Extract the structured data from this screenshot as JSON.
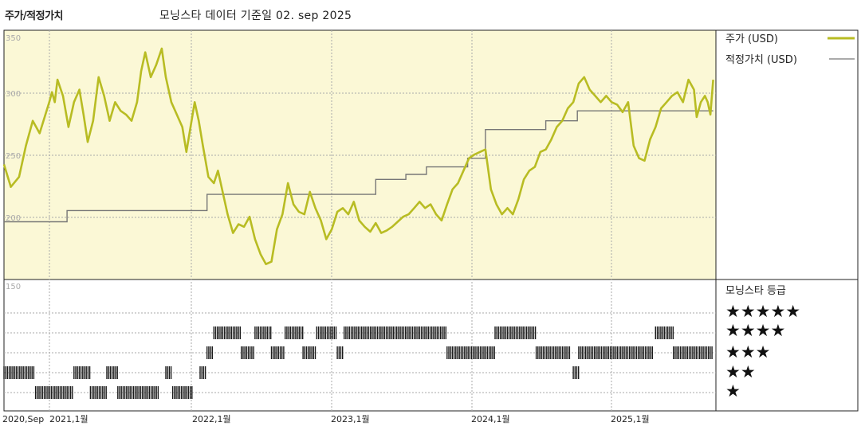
{
  "header": {
    "title": "주가/적정가치",
    "subtitle": "모닝스타 데이터 기준일 02. sep 2025"
  },
  "colors": {
    "price_line": "#b8bc23",
    "fair_value_line": "#777777",
    "plot_bg": "#fbf8d6",
    "bar": "#1a1a1a"
  },
  "legend": {
    "price_label": "주가 (USD)",
    "fair_value_label": "적정가치 (USD)",
    "rating_title": "모닝스타 등급"
  },
  "chart_data": {
    "type": "line",
    "x_labels": [
      "2020,Sep",
      "2021,1월",
      "2022,1월",
      "2023,1월",
      "2024,1월",
      "2025,1월"
    ],
    "y_ticks": [
      "350",
      "300",
      "250",
      "200",
      "150"
    ],
    "ylim": [
      150,
      350
    ],
    "price_series_name": "주가 (USD)",
    "price": [
      [
        2020.67,
        250
      ],
      [
        2020.72,
        232
      ],
      [
        2020.78,
        240
      ],
      [
        2020.83,
        265
      ],
      [
        2020.88,
        285
      ],
      [
        2020.93,
        275
      ],
      [
        2021.0,
        300
      ],
      [
        2021.02,
        308
      ],
      [
        2021.04,
        300
      ],
      [
        2021.06,
        318
      ],
      [
        2021.1,
        305
      ],
      [
        2021.14,
        280
      ],
      [
        2021.18,
        300
      ],
      [
        2021.22,
        310
      ],
      [
        2021.25,
        290
      ],
      [
        2021.28,
        268
      ],
      [
        2021.32,
        285
      ],
      [
        2021.36,
        320
      ],
      [
        2021.4,
        305
      ],
      [
        2021.44,
        285
      ],
      [
        2021.48,
        300
      ],
      [
        2021.52,
        293
      ],
      [
        2021.56,
        290
      ],
      [
        2021.6,
        285
      ],
      [
        2021.64,
        300
      ],
      [
        2021.67,
        325
      ],
      [
        2021.7,
        340
      ],
      [
        2021.74,
        320
      ],
      [
        2021.78,
        330
      ],
      [
        2021.82,
        343
      ],
      [
        2021.85,
        320
      ],
      [
        2021.89,
        300
      ],
      [
        2021.93,
        290
      ],
      [
        2021.97,
        280
      ],
      [
        2022.0,
        260
      ],
      [
        2022.03,
        280
      ],
      [
        2022.06,
        300
      ],
      [
        2022.09,
        285
      ],
      [
        2022.12,
        265
      ],
      [
        2022.16,
        240
      ],
      [
        2022.2,
        235
      ],
      [
        2022.23,
        245
      ],
      [
        2022.27,
        225
      ],
      [
        2022.3,
        210
      ],
      [
        2022.34,
        195
      ],
      [
        2022.38,
        202
      ],
      [
        2022.42,
        200
      ],
      [
        2022.46,
        208
      ],
      [
        2022.5,
        190
      ],
      [
        2022.54,
        178
      ],
      [
        2022.58,
        170
      ],
      [
        2022.62,
        172
      ],
      [
        2022.66,
        198
      ],
      [
        2022.7,
        210
      ],
      [
        2022.74,
        235
      ],
      [
        2022.78,
        218
      ],
      [
        2022.82,
        212
      ],
      [
        2022.86,
        210
      ],
      [
        2022.9,
        228
      ],
      [
        2022.94,
        215
      ],
      [
        2022.98,
        205
      ],
      [
        2023.02,
        190
      ],
      [
        2023.06,
        198
      ],
      [
        2023.1,
        212
      ],
      [
        2023.14,
        215
      ],
      [
        2023.18,
        210
      ],
      [
        2023.22,
        220
      ],
      [
        2023.26,
        205
      ],
      [
        2023.3,
        200
      ],
      [
        2023.34,
        196
      ],
      [
        2023.38,
        203
      ],
      [
        2023.42,
        195
      ],
      [
        2023.46,
        197
      ],
      [
        2023.5,
        200
      ],
      [
        2023.54,
        204
      ],
      [
        2023.58,
        208
      ],
      [
        2023.62,
        210
      ],
      [
        2023.66,
        215
      ],
      [
        2023.7,
        220
      ],
      [
        2023.74,
        215
      ],
      [
        2023.78,
        218
      ],
      [
        2023.82,
        210
      ],
      [
        2023.86,
        205
      ],
      [
        2023.9,
        218
      ],
      [
        2023.94,
        230
      ],
      [
        2023.98,
        235
      ],
      [
        2024.02,
        245
      ],
      [
        2024.06,
        255
      ],
      [
        2024.1,
        258
      ],
      [
        2024.14,
        260
      ],
      [
        2024.18,
        262
      ],
      [
        2024.22,
        230
      ],
      [
        2024.26,
        218
      ],
      [
        2024.3,
        210
      ],
      [
        2024.34,
        215
      ],
      [
        2024.38,
        210
      ],
      [
        2024.42,
        222
      ],
      [
        2024.46,
        238
      ],
      [
        2024.5,
        245
      ],
      [
        2024.54,
        248
      ],
      [
        2024.58,
        260
      ],
      [
        2024.62,
        262
      ],
      [
        2024.66,
        270
      ],
      [
        2024.7,
        280
      ],
      [
        2024.74,
        285
      ],
      [
        2024.78,
        295
      ],
      [
        2024.82,
        300
      ],
      [
        2024.86,
        315
      ],
      [
        2024.9,
        320
      ],
      [
        2024.94,
        310
      ],
      [
        2024.98,
        305
      ],
      [
        2025.02,
        300
      ],
      [
        2025.06,
        305
      ],
      [
        2025.1,
        300
      ],
      [
        2025.14,
        298
      ],
      [
        2025.18,
        292
      ],
      [
        2025.22,
        300
      ],
      [
        2025.26,
        265
      ],
      [
        2025.3,
        255
      ],
      [
        2025.34,
        253
      ],
      [
        2025.38,
        270
      ],
      [
        2025.42,
        280
      ],
      [
        2025.46,
        295
      ],
      [
        2025.5,
        300
      ],
      [
        2025.54,
        305
      ],
      [
        2025.58,
        308
      ],
      [
        2025.62,
        300
      ],
      [
        2025.66,
        318
      ],
      [
        2025.7,
        310
      ],
      [
        2025.72,
        288
      ],
      [
        2025.75,
        300
      ],
      [
        2025.78,
        305
      ],
      [
        2025.8,
        300
      ],
      [
        2025.82,
        290
      ],
      [
        2025.84,
        318
      ]
    ],
    "fair_value_series_name": "적정가치 (USD)",
    "fair_value": [
      [
        2020.67,
        204
      ],
      [
        2021.13,
        204
      ],
      [
        2021.13,
        213
      ],
      [
        2022.15,
        213
      ],
      [
        2022.15,
        226
      ],
      [
        2023.38,
        226
      ],
      [
        2023.38,
        238
      ],
      [
        2023.6,
        238
      ],
      [
        2023.6,
        242
      ],
      [
        2023.75,
        242
      ],
      [
        2023.75,
        248
      ],
      [
        2024.05,
        248
      ],
      [
        2024.05,
        255
      ],
      [
        2024.18,
        255
      ],
      [
        2024.18,
        278
      ],
      [
        2024.62,
        278
      ],
      [
        2024.62,
        285
      ],
      [
        2024.85,
        285
      ],
      [
        2024.85,
        293
      ],
      [
        2025.12,
        293
      ],
      [
        2025.12,
        293
      ],
      [
        2025.84,
        293
      ]
    ],
    "rating_levels": [
      "★★★★★",
      "★★★★",
      "★★★",
      "★★",
      "★"
    ],
    "ratings": [
      {
        "x0": 2020.67,
        "x1": 2020.9,
        "stars": 2
      },
      {
        "x0": 2020.9,
        "x1": 2021.18,
        "stars": 1
      },
      {
        "x0": 2021.18,
        "x1": 2021.3,
        "stars": 2
      },
      {
        "x0": 2021.3,
        "x1": 2021.42,
        "stars": 1
      },
      {
        "x0": 2021.42,
        "x1": 2021.5,
        "stars": 2
      },
      {
        "x0": 2021.5,
        "x1": 2021.8,
        "stars": 1
      },
      {
        "x0": 2021.85,
        "x1": 2021.9,
        "stars": 2
      },
      {
        "x0": 2021.9,
        "x1": 2022.05,
        "stars": 1
      },
      {
        "x0": 2022.1,
        "x1": 2022.15,
        "stars": 2
      },
      {
        "x0": 2022.15,
        "x1": 2022.2,
        "stars": 3
      },
      {
        "x0": 2022.2,
        "x1": 2022.4,
        "stars": 4
      },
      {
        "x0": 2022.4,
        "x1": 2022.5,
        "stars": 3
      },
      {
        "x0": 2022.5,
        "x1": 2022.62,
        "stars": 4
      },
      {
        "x0": 2022.62,
        "x1": 2022.72,
        "stars": 3
      },
      {
        "x0": 2022.72,
        "x1": 2022.85,
        "stars": 4
      },
      {
        "x0": 2022.85,
        "x1": 2022.95,
        "stars": 3
      },
      {
        "x0": 2022.95,
        "x1": 2023.1,
        "stars": 4
      },
      {
        "x0": 2023.1,
        "x1": 2023.15,
        "stars": 3
      },
      {
        "x0": 2023.15,
        "x1": 2023.9,
        "stars": 4
      },
      {
        "x0": 2023.9,
        "x1": 2024.25,
        "stars": 3
      },
      {
        "x0": 2024.25,
        "x1": 2024.55,
        "stars": 4
      },
      {
        "x0": 2024.55,
        "x1": 2024.8,
        "stars": 3
      },
      {
        "x0": 2024.82,
        "x1": 2024.86,
        "stars": 2
      },
      {
        "x0": 2024.86,
        "x1": 2025.4,
        "stars": 3
      },
      {
        "x0": 2025.42,
        "x1": 2025.55,
        "stars": 4
      },
      {
        "x0": 2025.55,
        "x1": 2025.84,
        "stars": 3
      }
    ]
  }
}
